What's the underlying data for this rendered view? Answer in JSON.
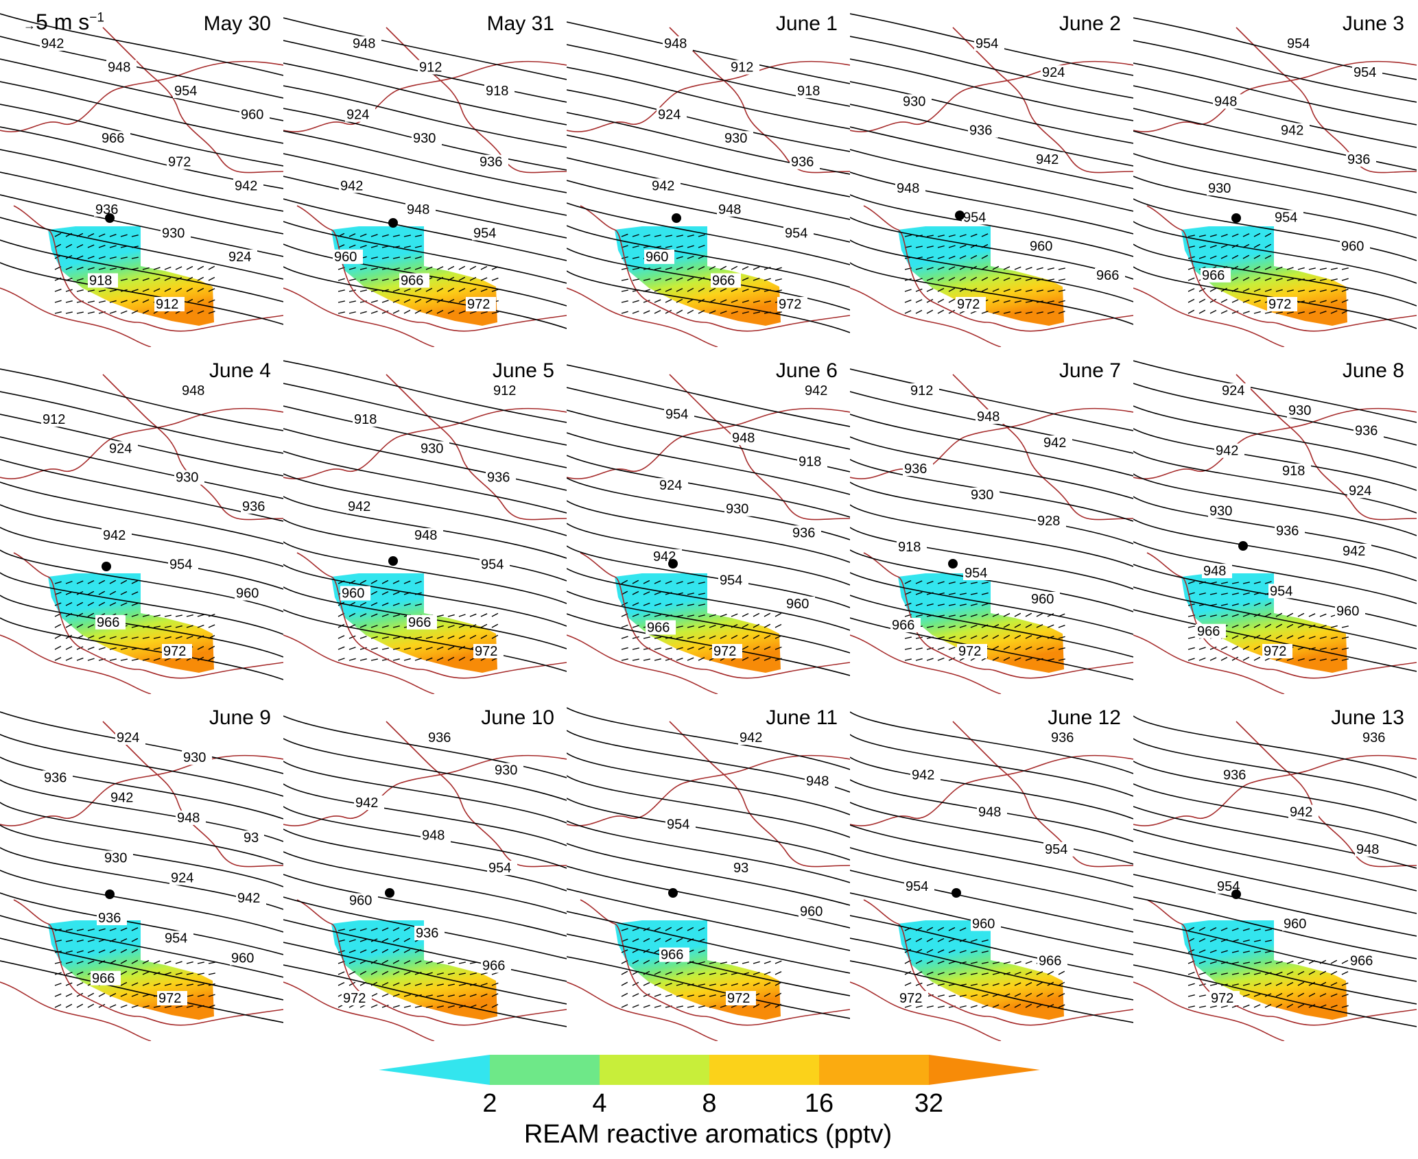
{
  "panels": [
    {
      "date": "May  30",
      "contours": [
        "942",
        "948",
        "954",
        "960",
        "966",
        "972",
        "942",
        "936",
        "930",
        "924",
        "918",
        "912"
      ]
    },
    {
      "date": "May  31",
      "contours": [
        "948",
        "912",
        "918",
        "924",
        "930",
        "936",
        "942",
        "948",
        "954",
        "960",
        "966",
        "972"
      ]
    },
    {
      "date": "June 1",
      "contours": [
        "948",
        "912",
        "918",
        "924",
        "930",
        "936",
        "942",
        "948",
        "954",
        "960",
        "966",
        "972"
      ]
    },
    {
      "date": "June 2",
      "contours": [
        "954",
        "924",
        "930",
        "936",
        "942",
        "948",
        "954",
        "960",
        "966",
        "972"
      ]
    },
    {
      "date": "June 3",
      "contours": [
        "954",
        "954",
        "948",
        "942",
        "936",
        "930",
        "954",
        "960",
        "966",
        "972"
      ]
    },
    {
      "date": "June 4",
      "contours": [
        "948",
        "912",
        "924",
        "930",
        "936",
        "942",
        "954",
        "960",
        "966",
        "972"
      ]
    },
    {
      "date": "June 5",
      "contours": [
        "912",
        "918",
        "930",
        "936",
        "942",
        "948",
        "954",
        "960",
        "966",
        "972"
      ]
    },
    {
      "date": "June 6",
      "contours": [
        "942",
        "954",
        "948",
        "918",
        "924",
        "930",
        "936",
        "942",
        "954",
        "960",
        "966",
        "972"
      ]
    },
    {
      "date": "June 7",
      "contours": [
        "912",
        "948",
        "942",
        "936",
        "930",
        "928",
        "918",
        "954",
        "960",
        "966",
        "972"
      ]
    },
    {
      "date": "June 8",
      "contours": [
        "924",
        "930",
        "936",
        "942",
        "918",
        "924",
        "930",
        "936",
        "942",
        "948",
        "954",
        "960",
        "966",
        "972"
      ]
    },
    {
      "date": "June 9",
      "contours": [
        "924",
        "930",
        "936",
        "942",
        "948",
        "93",
        "930",
        "924",
        "942",
        "936",
        "954",
        "960",
        "966",
        "972"
      ]
    },
    {
      "date": "June 10",
      "contours": [
        "936",
        "930",
        "942",
        "948",
        "954",
        "960",
        "936",
        "966",
        "972"
      ]
    },
    {
      "date": "June 11",
      "contours": [
        "942",
        "948",
        "954",
        "93",
        "960",
        "966",
        "972"
      ]
    },
    {
      "date": "June 12",
      "contours": [
        "936",
        "942",
        "948",
        "954",
        "954",
        "960",
        "966",
        "972"
      ]
    },
    {
      "date": "June 13",
      "contours": [
        "936",
        "936",
        "942",
        "948",
        "954",
        "960",
        "966",
        "972"
      ]
    }
  ],
  "vector_scale": {
    "label": "5 m s",
    "exponent": "−1"
  },
  "legend": {
    "title": "REAM reactive aromatics (pptv)",
    "ticks": [
      "2",
      "4",
      "8",
      "16",
      "32"
    ],
    "colors": [
      "#33e5ee",
      "#6ee888",
      "#c8ee3a",
      "#fbd21a",
      "#fbab10",
      "#f78b08"
    ]
  }
}
